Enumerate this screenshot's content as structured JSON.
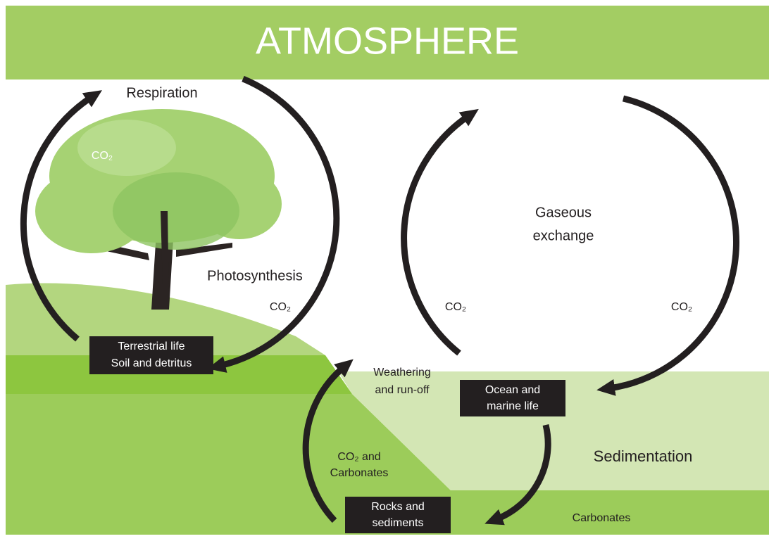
{
  "header": {
    "title": "ATMOSPHERE"
  },
  "labels": {
    "respiration": "Respiration",
    "photosynthesis": "Photosynthesis",
    "co2_tree": "CO₂",
    "co2_photosynthesis": "CO₂",
    "gaseous_exchange": [
      "Gaseous",
      "exchange"
    ],
    "co2_ocean_up": "CO₂",
    "co2_ocean_down": "CO₂",
    "weathering": [
      "Weathering",
      "and run-off"
    ],
    "sedimentation": "Sedimentation",
    "co2_carbonates": [
      "CO₂ and",
      "Carbonates"
    ],
    "carbonates": "Carbonates"
  },
  "boxes": [
    {
      "lines": [
        "Terrestrial life",
        "Soil and detritus"
      ]
    },
    {
      "lines": [
        "Ocean and",
        "marine life"
      ]
    },
    {
      "lines": [
        "Rocks and",
        "sediments"
      ]
    }
  ]
}
